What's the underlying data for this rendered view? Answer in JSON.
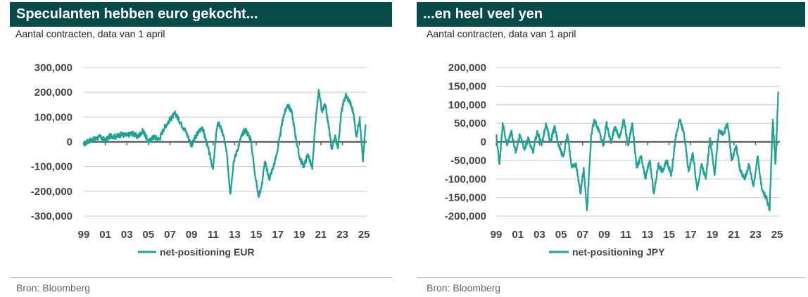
{
  "panels": [
    {
      "title": "Speculanten hebben euro gekocht...",
      "subtitle": "Aantal contracten, data van 1 april",
      "source": "Bron: Bloomberg"
    },
    {
      "title": "...en heel veel yen",
      "subtitle": "Aantal contracten, data van 1 april",
      "source": "Bron: Bloomberg"
    }
  ],
  "chart_data": [
    {
      "type": "line",
      "title": "Speculanten hebben euro gekocht...",
      "subtitle": "Aantal contracten, data van 1 april",
      "xlabel": "",
      "ylabel": "",
      "xlim": [
        1999,
        2025.25
      ],
      "ylim": [
        -300000,
        300000
      ],
      "x_tick_labels": [
        "99",
        "01",
        "03",
        "05",
        "07",
        "09",
        "11",
        "13",
        "15",
        "17",
        "19",
        "21",
        "23",
        "25"
      ],
      "y_tick_labels": [
        "300,000",
        "200,000",
        "100,000",
        "0",
        "-100,000",
        "-200,000",
        "-300,000"
      ],
      "y_ticks": [
        300000,
        200000,
        100000,
        0,
        -100000,
        -200000,
        -300000
      ],
      "grid": true,
      "legend": "bottom",
      "color": "#1fa394",
      "series": [
        {
          "name": "net-positioning EUR",
          "points": [
            [
              1999.0,
              -10000
            ],
            [
              1999.5,
              5000
            ],
            [
              2000.0,
              10000
            ],
            [
              2000.5,
              20000
            ],
            [
              2001.0,
              5000
            ],
            [
              2001.5,
              25000
            ],
            [
              2002.0,
              20000
            ],
            [
              2002.5,
              30000
            ],
            [
              2003.0,
              25000
            ],
            [
              2003.5,
              35000
            ],
            [
              2004.0,
              20000
            ],
            [
              2004.5,
              45000
            ],
            [
              2005.0,
              0
            ],
            [
              2005.5,
              20000
            ],
            [
              2006.0,
              10000
            ],
            [
              2006.5,
              60000
            ],
            [
              2007.0,
              90000
            ],
            [
              2007.5,
              115000
            ],
            [
              2008.0,
              75000
            ],
            [
              2008.5,
              40000
            ],
            [
              2009.0,
              -15000
            ],
            [
              2009.5,
              30000
            ],
            [
              2010.0,
              60000
            ],
            [
              2010.5,
              -20000
            ],
            [
              2011.0,
              -110000
            ],
            [
              2011.3,
              40000
            ],
            [
              2011.5,
              80000
            ],
            [
              2012.0,
              20000
            ],
            [
              2012.3,
              -60000
            ],
            [
              2012.6,
              -210000
            ],
            [
              2012.9,
              -80000
            ],
            [
              2013.2,
              -40000
            ],
            [
              2013.6,
              20000
            ],
            [
              2014.0,
              50000
            ],
            [
              2014.5,
              10000
            ],
            [
              2014.8,
              -100000
            ],
            [
              2015.2,
              -220000
            ],
            [
              2015.5,
              -180000
            ],
            [
              2015.8,
              -80000
            ],
            [
              2016.2,
              -150000
            ],
            [
              2016.6,
              -100000
            ],
            [
              2016.9,
              -50000
            ],
            [
              2017.2,
              20000
            ],
            [
              2017.5,
              100000
            ],
            [
              2017.9,
              150000
            ],
            [
              2018.3,
              120000
            ],
            [
              2018.7,
              10000
            ],
            [
              2019.0,
              -60000
            ],
            [
              2019.4,
              -100000
            ],
            [
              2019.8,
              -50000
            ],
            [
              2020.2,
              -110000
            ],
            [
              2020.5,
              80000
            ],
            [
              2020.8,
              210000
            ],
            [
              2021.1,
              120000
            ],
            [
              2021.4,
              150000
            ],
            [
              2021.8,
              40000
            ],
            [
              2022.0,
              -30000
            ],
            [
              2022.3,
              20000
            ],
            [
              2022.6,
              -20000
            ],
            [
              2022.9,
              120000
            ],
            [
              2023.3,
              190000
            ],
            [
              2023.7,
              160000
            ],
            [
              2024.0,
              120000
            ],
            [
              2024.3,
              20000
            ],
            [
              2024.6,
              100000
            ],
            [
              2024.9,
              -80000
            ],
            [
              2025.15,
              70000
            ]
          ]
        }
      ]
    },
    {
      "type": "line",
      "title": "...en heel veel yen",
      "subtitle": "Aantal contracten, data van 1 april",
      "xlabel": "",
      "ylabel": "",
      "xlim": [
        1999,
        2025.25
      ],
      "ylim": [
        -200000,
        200000
      ],
      "x_tick_labels": [
        "99",
        "01",
        "03",
        "05",
        "07",
        "09",
        "11",
        "13",
        "15",
        "17",
        "19",
        "21",
        "23",
        "25"
      ],
      "y_tick_labels": [
        "200,000",
        "150,000",
        "100,000",
        "50,000",
        "0",
        "-50,000",
        "-100,000",
        "-150,000",
        "-200,000"
      ],
      "y_ticks": [
        200000,
        150000,
        100000,
        50000,
        0,
        -50000,
        -100000,
        -150000,
        -200000
      ],
      "grid": true,
      "legend": "bottom",
      "color": "#1fa394",
      "series": [
        {
          "name": "net-positioning JPY",
          "points": [
            [
              1999.0,
              20000
            ],
            [
              1999.3,
              -60000
            ],
            [
              1999.6,
              50000
            ],
            [
              2000.0,
              -10000
            ],
            [
              2000.4,
              30000
            ],
            [
              2000.8,
              -30000
            ],
            [
              2001.2,
              20000
            ],
            [
              2001.6,
              -20000
            ],
            [
              2002.0,
              10000
            ],
            [
              2002.4,
              -30000
            ],
            [
              2002.8,
              30000
            ],
            [
              2003.2,
              -10000
            ],
            [
              2003.6,
              50000
            ],
            [
              2004.0,
              0
            ],
            [
              2004.4,
              40000
            ],
            [
              2004.8,
              -10000
            ],
            [
              2005.2,
              -40000
            ],
            [
              2005.6,
              20000
            ],
            [
              2006.0,
              -70000
            ],
            [
              2006.4,
              -60000
            ],
            [
              2006.8,
              -140000
            ],
            [
              2007.1,
              -70000
            ],
            [
              2007.4,
              -185000
            ],
            [
              2007.8,
              20000
            ],
            [
              2008.1,
              60000
            ],
            [
              2008.5,
              30000
            ],
            [
              2008.9,
              -10000
            ],
            [
              2009.2,
              50000
            ],
            [
              2009.6,
              0
            ],
            [
              2010.0,
              40000
            ],
            [
              2010.4,
              10000
            ],
            [
              2010.8,
              60000
            ],
            [
              2011.2,
              -10000
            ],
            [
              2011.6,
              50000
            ],
            [
              2012.0,
              -70000
            ],
            [
              2012.4,
              -40000
            ],
            [
              2012.8,
              -100000
            ],
            [
              2013.2,
              -50000
            ],
            [
              2013.6,
              -140000
            ],
            [
              2014.0,
              -60000
            ],
            [
              2014.4,
              -80000
            ],
            [
              2014.8,
              -50000
            ],
            [
              2015.2,
              -90000
            ],
            [
              2015.6,
              10000
            ],
            [
              2016.0,
              60000
            ],
            [
              2016.4,
              20000
            ],
            [
              2016.8,
              -80000
            ],
            [
              2017.2,
              -30000
            ],
            [
              2017.6,
              -130000
            ],
            [
              2018.0,
              -60000
            ],
            [
              2018.4,
              -100000
            ],
            [
              2018.8,
              10000
            ],
            [
              2019.2,
              -90000
            ],
            [
              2019.6,
              30000
            ],
            [
              2020.0,
              20000
            ],
            [
              2020.4,
              50000
            ],
            [
              2020.8,
              -50000
            ],
            [
              2021.2,
              -10000
            ],
            [
              2021.6,
              -80000
            ],
            [
              2022.0,
              -100000
            ],
            [
              2022.4,
              -60000
            ],
            [
              2022.8,
              -120000
            ],
            [
              2023.2,
              -40000
            ],
            [
              2023.6,
              -130000
            ],
            [
              2024.0,
              -150000
            ],
            [
              2024.3,
              -185000
            ],
            [
              2024.6,
              60000
            ],
            [
              2024.85,
              -60000
            ],
            [
              2025.1,
              135000
            ]
          ]
        }
      ]
    }
  ]
}
